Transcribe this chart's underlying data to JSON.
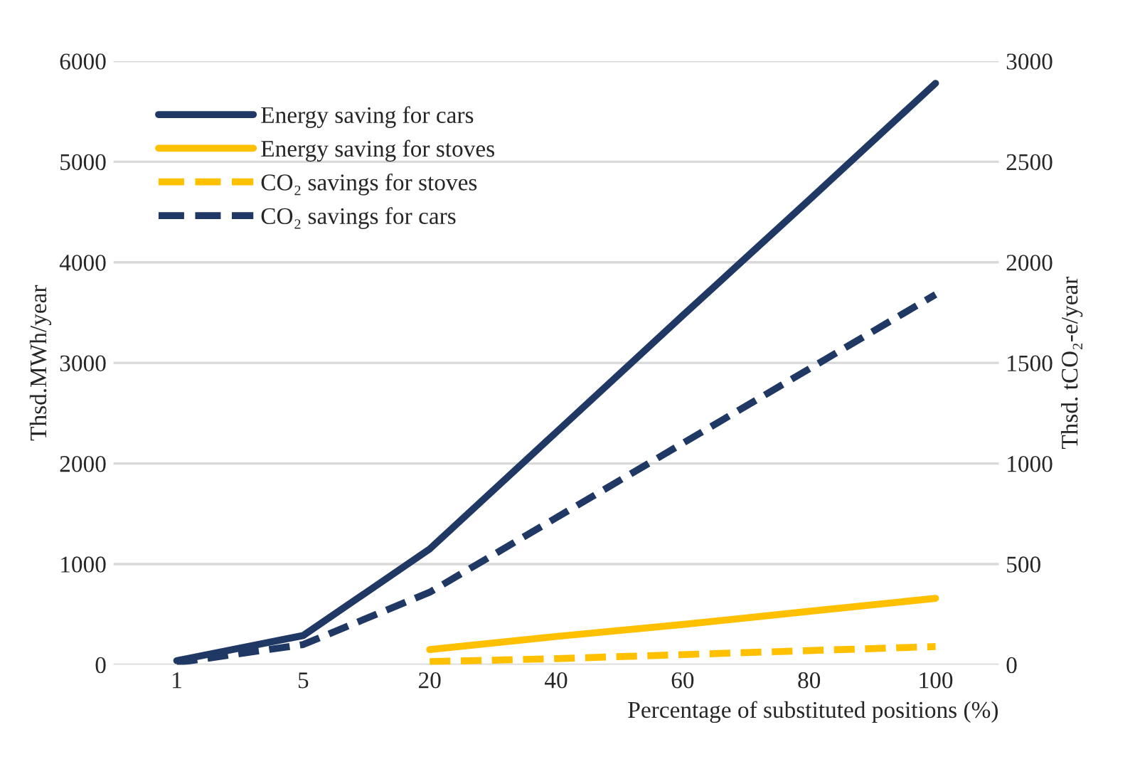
{
  "chart_data": {
    "type": "line",
    "xlabel": "Percentage of substituted positions (%)",
    "ylabel": "Thsd.MWh/year",
    "y2label": "Thsd. tCO₂-e/year",
    "categories": [
      "1",
      "5",
      "20",
      "40",
      "60",
      "80",
      "100"
    ],
    "series": [
      {
        "name": "Energy saving for cars",
        "color": "#203864",
        "line_style": "solid",
        "values": [
          40,
          290,
          1150,
          2310,
          3470,
          4620,
          5780
        ]
      },
      {
        "name": "Energy saving for stoves",
        "color": "#ffc000",
        "line_style": "solid",
        "values": [
          null,
          null,
          150,
          280,
          400,
          530,
          660
        ]
      },
      {
        "name": "CO₂ savings for stoves",
        "color": "#ffc000",
        "line_style": "dashed",
        "axis": "y2",
        "values": [
          null,
          null,
          15,
          30,
          50,
          70,
          90
        ]
      },
      {
        "name": "CO₂ savings for cars",
        "color": "#203864",
        "line_style": "dashed",
        "axis": "y2",
        "values": [
          10,
          100,
          360,
          730,
          1100,
          1470,
          1840
        ]
      }
    ],
    "ylim": [
      0,
      6000
    ],
    "yticks": [
      0,
      1000,
      2000,
      3000,
      4000,
      5000,
      6000
    ],
    "y2lim": [
      0,
      3000
    ],
    "y2ticks": [
      0,
      500,
      1000,
      1500,
      2000,
      2500,
      3000
    ],
    "grid": "y",
    "legend": "top left"
  }
}
